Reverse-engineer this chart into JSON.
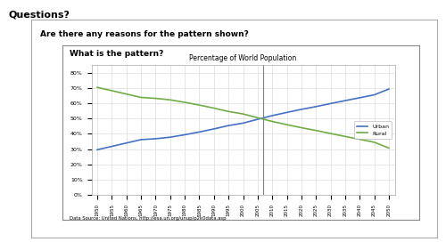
{
  "title_main": "Questions?",
  "title_box1": "Are there any reasons for the pattern shown?",
  "title_box2": "What is the pattern?",
  "chart_title": "Percentage of World Population",
  "x_years": [
    1950,
    1955,
    1960,
    1965,
    1970,
    1975,
    1980,
    1985,
    1990,
    1995,
    2000,
    2005,
    2010,
    2015,
    2020,
    2025,
    2030,
    2035,
    2040,
    2045,
    2050
  ],
  "urban_values": [
    0.296,
    0.318,
    0.34,
    0.362,
    0.368,
    0.378,
    0.394,
    0.412,
    0.432,
    0.454,
    0.47,
    0.495,
    0.519,
    0.54,
    0.56,
    0.578,
    0.598,
    0.617,
    0.636,
    0.655,
    0.693
  ],
  "rural_values": [
    0.704,
    0.682,
    0.66,
    0.638,
    0.632,
    0.622,
    0.606,
    0.588,
    0.568,
    0.546,
    0.53,
    0.505,
    0.481,
    0.46,
    0.44,
    0.422,
    0.402,
    0.383,
    0.364,
    0.345,
    0.307
  ],
  "vline_x": 2007,
  "urban_color": "#4472C4",
  "rural_color": "#70AD47",
  "source_text": "Data Source: United Nations, http://esa.un.org/unup/p2k0data.asp",
  "background_color": "#ffffff",
  "outer_box_color": "#cccccc",
  "ylim": [
    0,
    0.85
  ],
  "yticks": [
    0,
    0.1,
    0.2,
    0.3,
    0.4,
    0.5,
    0.6,
    0.7,
    0.8
  ],
  "ytick_labels": [
    "0%",
    "10%",
    "20%",
    "30%",
    "40%",
    "50%",
    "60%",
    "70%",
    "80%"
  ]
}
